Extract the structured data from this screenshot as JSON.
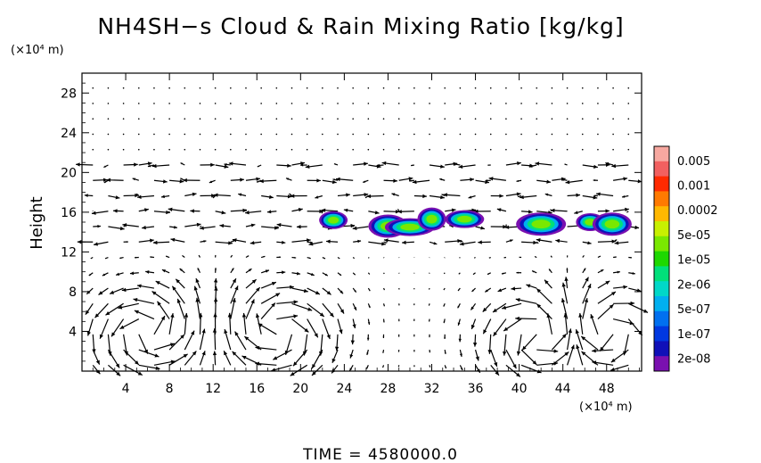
{
  "chart_data": {
    "type": "heatmap",
    "title": "NH4SH−s Cloud & Rain Mixing Ratio [kg/kg]",
    "ylabel": "Height",
    "y_unit": "(×10⁴ m)",
    "x_unit": "(×10⁴ m)",
    "time_label": "TIME  =  4580000.0",
    "xlim": [
      0,
      51.2
    ],
    "ylim": [
      0,
      30
    ],
    "x_ticks": [
      4,
      8,
      12,
      16,
      20,
      24,
      28,
      32,
      36,
      40,
      44,
      48
    ],
    "y_ticks": [
      4,
      8,
      12,
      16,
      20,
      24,
      28
    ],
    "colorbar": {
      "labels": [
        "0.005",
        "0.001",
        "0.0002",
        "5e-05",
        "1e-05",
        "2e-06",
        "5e-07",
        "1e-07",
        "2e-08"
      ],
      "colors": [
        "#f7a8a0",
        "#f26060",
        "#ff2a00",
        "#ff7a00",
        "#ffb800",
        "#c8f000",
        "#7ae800",
        "#1ed800",
        "#00e07a",
        "#00d8c8",
        "#00b0f0",
        "#0070f0",
        "#0038e0",
        "#1010b8",
        "#7a10b0"
      ]
    },
    "cloud_patches": [
      {
        "x": 23.0,
        "y": 15.2,
        "max_level": "5e-06"
      },
      {
        "x": 28.0,
        "y": 14.6,
        "max_level": "1e-05"
      },
      {
        "x": 30.0,
        "y": 14.5,
        "max_level": "1e-05"
      },
      {
        "x": 32.0,
        "y": 15.3,
        "max_level": "2e-05"
      },
      {
        "x": 35.0,
        "y": 15.3,
        "max_level": "5e-05"
      },
      {
        "x": 42.0,
        "y": 14.8,
        "max_level": "2e-06"
      },
      {
        "x": 46.5,
        "y": 15.0,
        "max_level": "5e-06"
      },
      {
        "x": 48.5,
        "y": 14.8,
        "max_level": "1e-05"
      }
    ]
  }
}
